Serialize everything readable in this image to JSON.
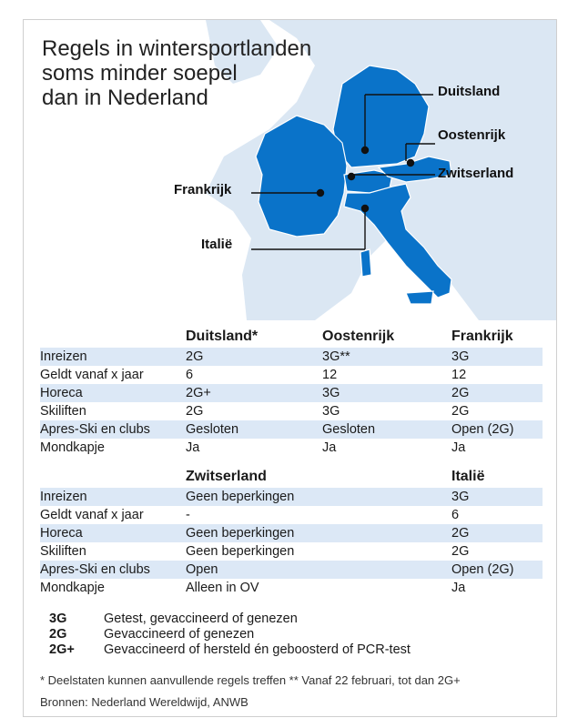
{
  "title_lines": [
    "Regels in wintersportlanden",
    "soms minder soepel",
    "dan in Nederland"
  ],
  "map_labels": {
    "duitsland": "Duitsland",
    "oostenrijk": "Oostenrijk",
    "zwitserland": "Zwitserland",
    "frankrijk": "Frankrijk",
    "italie": "Italië"
  },
  "colors": {
    "highlight": "#0a73c9",
    "land": "#dbe7f3",
    "row_shade": "#dce8f6"
  },
  "table1": {
    "headers": [
      "",
      "Duitsland*",
      "Oostenrijk",
      "Frankrijk"
    ],
    "rows": [
      [
        "Inreizen",
        "2G",
        "3G**",
        "3G"
      ],
      [
        "Geldt vanaf x jaar",
        "6",
        "12",
        "12"
      ],
      [
        "Horeca",
        "2G+",
        "3G",
        "2G"
      ],
      [
        "Skiliften",
        "2G",
        "3G",
        "2G"
      ],
      [
        "Apres-Ski en clubs",
        "Gesloten",
        "Gesloten",
        "Open (2G)"
      ],
      [
        "Mondkapje",
        "Ja",
        "Ja",
        "Ja"
      ]
    ]
  },
  "table2": {
    "headers": [
      "",
      "Zwitserland",
      "Italië"
    ],
    "rows": [
      [
        "Inreizen",
        "Geen beperkingen",
        "3G"
      ],
      [
        "Geldt  vanaf x jaar",
        "-",
        "6"
      ],
      [
        "Horeca",
        "Geen beperkingen",
        "2G"
      ],
      [
        "Skiliften",
        "Geen beperkingen",
        "2G"
      ],
      [
        "Apres-Ski en clubs",
        "Open",
        "Open (2G)"
      ],
      [
        "Mondkapje",
        "Alleen in OV",
        "Ja"
      ]
    ]
  },
  "legend": [
    {
      "key": "3G",
      "text": "Getest, gevaccineerd of genezen"
    },
    {
      "key": "2G",
      "text": "Gevaccineerd of genezen"
    },
    {
      "key": "2G+",
      "text": "Gevaccineerd of hersteld én geboosterd of PCR-test"
    }
  ],
  "footnote": "* Deelstaten kunnen aanvullende regels treffen ** Vanaf 22 februari, tot dan 2G+",
  "sources": "Bronnen: Nederland Wereldwijd, ANWB"
}
